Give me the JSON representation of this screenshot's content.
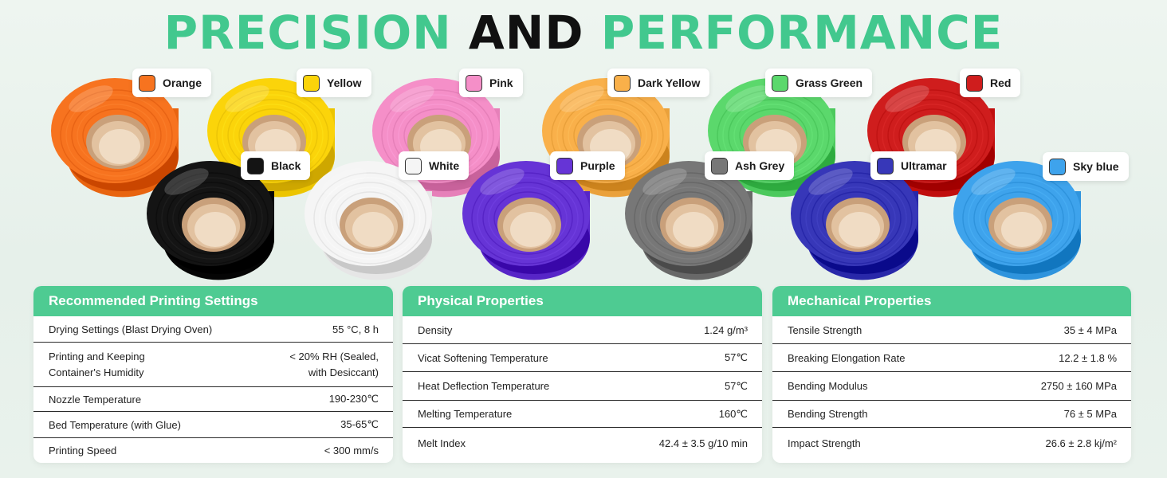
{
  "headline": {
    "part1": "PRECISION",
    "part2": "AND",
    "part3": "PERFORMANCE"
  },
  "spools": [
    {
      "name": "Orange",
      "color": "#f7731f",
      "icon": "orange-swatch"
    },
    {
      "name": "Yellow",
      "color": "#fbd40a",
      "icon": "yellow-swatch"
    },
    {
      "name": "Pink",
      "color": "#f58fc8",
      "icon": "pink-swatch"
    },
    {
      "name": "Dark Yellow",
      "color": "#f9b04a",
      "icon": "dark-yellow-swatch"
    },
    {
      "name": "Grass Green",
      "color": "#5bd86c",
      "icon": "grass-green-swatch"
    },
    {
      "name": "Red",
      "color": "#cf1d1d",
      "icon": "red-swatch"
    },
    {
      "name": "Black",
      "color": "#141414",
      "icon": "black-swatch"
    },
    {
      "name": "White",
      "color": "#f5f5f5",
      "icon": "white-swatch"
    },
    {
      "name": "Purple",
      "color": "#6634d6",
      "icon": "purple-swatch"
    },
    {
      "name": "Ash Grey",
      "color": "#777777",
      "icon": "ash-grey-swatch"
    },
    {
      "name": "Ultramar",
      "color": "#3737b8",
      "icon": "ultramar-swatch"
    },
    {
      "name": "Sky blue",
      "color": "#3ea3ec",
      "icon": "sky-blue-swatch"
    }
  ],
  "panels": [
    {
      "title": "Recommended Printing Settings",
      "rows": [
        {
          "label": "Drying Settings (Blast Drying Oven)",
          "value": "55 °C, 8 h"
        },
        {
          "label": "Printing and Keeping Container's Humidity",
          "value": "< 20% RH (Sealed, with Desiccant)"
        },
        {
          "label": "Nozzle Temperature",
          "value": "190-230℃"
        },
        {
          "label": "Bed Temperature (with Glue)",
          "value": "35-65℃"
        },
        {
          "label": "Printing Speed",
          "value": "< 300 mm/s"
        }
      ]
    },
    {
      "title": "Physical Properties",
      "rows": [
        {
          "label": "Density",
          "value": "1.24 g/m³"
        },
        {
          "label": "Vicat Softening Temperature",
          "value": "57℃"
        },
        {
          "label": "Heat Deflection Temperature",
          "value": "57℃"
        },
        {
          "label": "Melting Temperature",
          "value": "160℃"
        },
        {
          "label": "Melt Index",
          "value": "42.4 ± 3.5 g/10 min"
        }
      ]
    },
    {
      "title": "Mechanical Properties",
      "rows": [
        {
          "label": "Tensile Strength",
          "value": "35 ± 4 MPa"
        },
        {
          "label": "Breaking Elongation Rate",
          "value": "12.2 ± 1.8 %"
        },
        {
          "label": "Bending Modulus",
          "value": "2750 ± 160 MPa"
        },
        {
          "label": "Bending Strength",
          "value": "76 ± 5 MPa"
        },
        {
          "label": "Impact Strength",
          "value": "26.6 ± 2.8 kj/m²"
        }
      ]
    }
  ]
}
